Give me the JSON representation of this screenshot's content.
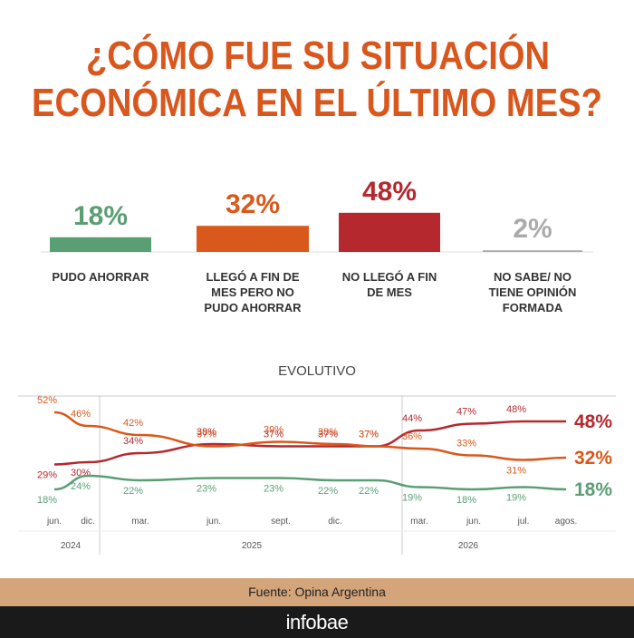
{
  "title": [
    "¿CÓMO FUE SU SITUACIÓN",
    "ECONÓMICA EN EL ÚLTIMO MES?"
  ],
  "chart_data": [
    {
      "type": "bar",
      "categories": [
        "PUDO AHORRAR",
        "LLEGÓ A FIN DE MES PERO NO PUDO AHORRAR",
        "NO LLEGÓ A FIN DE MES",
        "NO SABE/ NO TIENE OPINIÓN FORMADA"
      ],
      "values": [
        18,
        32,
        48,
        2
      ],
      "value_labels": [
        "18%",
        "32%",
        "48%",
        "2%"
      ],
      "colors": [
        "#5a9e73",
        "#d9581b",
        "#b5282e",
        "#aaaaaa"
      ]
    },
    {
      "type": "line",
      "title": "EVOLUTIVO",
      "categories": [
        "jun.",
        "dic.",
        "mar.",
        "jun.",
        "sept.",
        "dic.",
        null,
        "mar.",
        "jun.",
        "jul.",
        "agos."
      ],
      "years": [
        "2024",
        "2025",
        "2026"
      ],
      "series": [
        {
          "color": "#b5282e",
          "values": [
            29,
            30,
            34,
            38,
            37,
            37,
            37,
            44,
            47,
            48,
            48
          ],
          "value_labels": [
            "29%",
            "30%",
            "34%",
            "38%",
            "37%",
            "37%",
            "37%",
            "44%",
            "47%",
            "48%",
            "48%"
          ]
        },
        {
          "color": "#d9581b",
          "values": [
            52,
            46,
            42,
            37,
            39,
            38,
            37,
            36,
            33,
            31,
            32
          ],
          "value_labels": [
            "52%",
            "46%",
            "42%",
            "37%",
            "39%",
            "38%",
            "37%",
            "36%",
            "33%",
            "31%",
            "32%"
          ]
        },
        {
          "color": "#5a9e73",
          "values": [
            18,
            24,
            22,
            23,
            23,
            22,
            22,
            19,
            18,
            19,
            18
          ],
          "value_labels": [
            "18%",
            "24%",
            "22%",
            "23%",
            "23%",
            "22%",
            "22%",
            "19%",
            "18%",
            "19%",
            "18%"
          ]
        }
      ]
    }
  ],
  "source": "Fuente: Opina Argentina",
  "brand": "infobae"
}
